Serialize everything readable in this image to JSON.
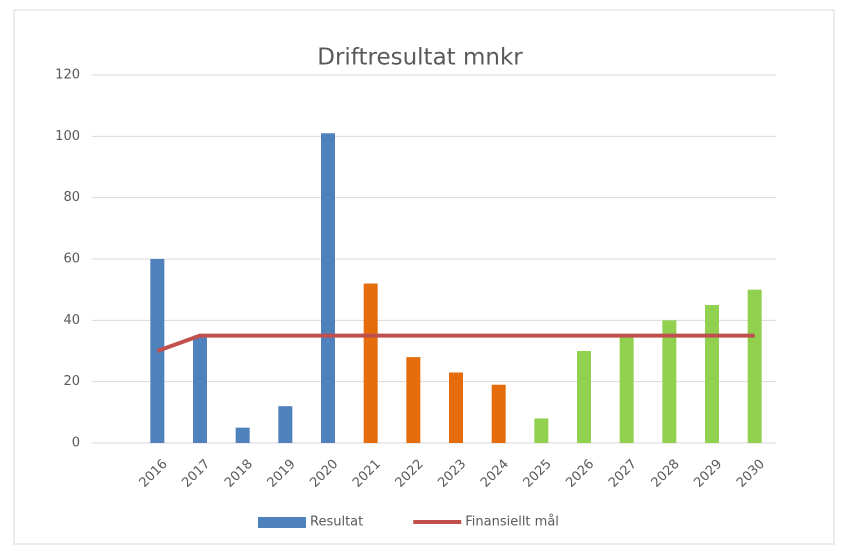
{
  "chart_data": {
    "type": "bar",
    "title": "Driftresultat mnkr",
    "categories": [
      "2016",
      "2017",
      "2018",
      "2019",
      "2020",
      "2021",
      "2022",
      "2023",
      "2024",
      "2025",
      "2026",
      "2027",
      "2028",
      "2029",
      "2030"
    ],
    "series": [
      {
        "name": "Resultat",
        "type": "bar",
        "color": "#4f81bd",
        "colors": [
          "#4f81bd",
          "#4f81bd",
          "#4f81bd",
          "#4f81bd",
          "#4f81bd",
          "#e46c0a",
          "#e46c0a",
          "#e46c0a",
          "#e46c0a",
          "#92d050",
          "#92d050",
          "#92d050",
          "#92d050",
          "#92d050",
          "#92d050"
        ],
        "values": [
          60,
          35,
          5,
          12,
          101,
          52,
          28,
          23,
          19,
          8,
          30,
          35,
          40,
          45,
          50
        ]
      },
      {
        "name": "Finansiellt mål",
        "type": "line",
        "color": "#c0504d",
        "values": [
          30,
          35,
          35,
          35,
          35,
          35,
          35,
          35,
          35,
          35,
          35,
          35,
          35,
          35,
          35
        ]
      }
    ],
    "ylim": [
      0,
      120
    ],
    "yticks": [
      0,
      20,
      40,
      60,
      80,
      100,
      120
    ],
    "grid": true,
    "legend": "bottom"
  }
}
